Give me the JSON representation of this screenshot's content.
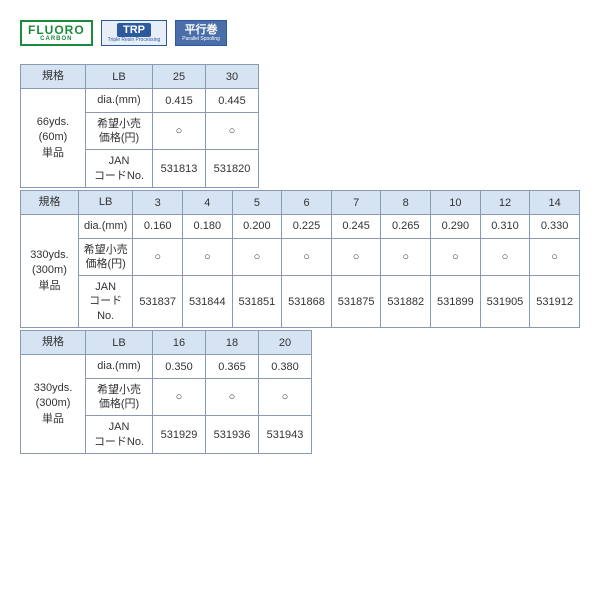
{
  "badges": {
    "fluoro": {
      "main": "FLUORO",
      "sub": "CARBON"
    },
    "trp": {
      "main": "TRP",
      "sub": "Triple Resin Processing"
    },
    "heikou": {
      "main": "平行巻",
      "sub": "Parallel Spooling"
    }
  },
  "labels": {
    "spec": "規格",
    "lb": "LB",
    "dia": "dia.(mm)",
    "price1": "希望小売",
    "price2": "価格(円)",
    "jan1": "JAN",
    "jan2": "コードNo.",
    "circle": "○"
  },
  "sections": [
    {
      "length": "66yds.\n(60m)\n単品",
      "lb": [
        "25",
        "30"
      ],
      "dia": [
        "0.415",
        "0.445"
      ],
      "jan": [
        "531813",
        "531820"
      ]
    },
    {
      "length": "330yds.\n(300m)\n単品",
      "lb": [
        "3",
        "4",
        "5",
        "6",
        "7",
        "8",
        "10",
        "12",
        "14"
      ],
      "dia": [
        "0.160",
        "0.180",
        "0.200",
        "0.225",
        "0.245",
        "0.265",
        "0.290",
        "0.310",
        "0.330"
      ],
      "jan": [
        "531837",
        "531844",
        "531851",
        "531868",
        "531875",
        "531882",
        "531899",
        "531905",
        "531912"
      ]
    },
    {
      "length": "330yds.\n(300m)\n単品",
      "lb": [
        "16",
        "18",
        "20"
      ],
      "dia": [
        "0.350",
        "0.365",
        "0.380"
      ],
      "jan": [
        "531929",
        "531936",
        "531943"
      ]
    }
  ]
}
